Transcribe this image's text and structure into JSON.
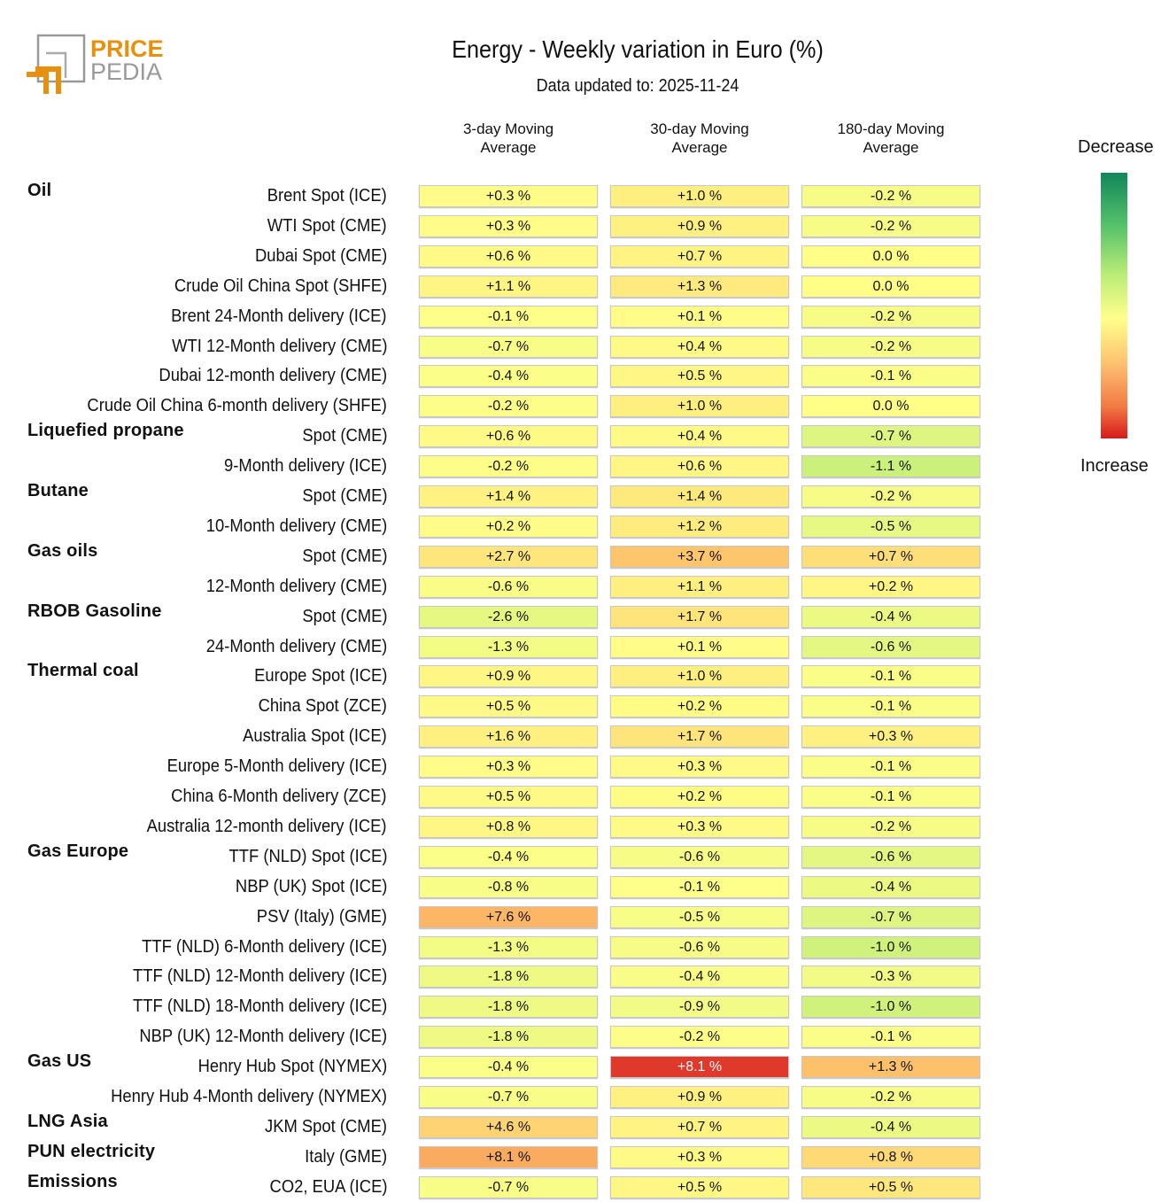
{
  "logo": {
    "text_top": "PRICE",
    "text_bottom": "PEDIA"
  },
  "title": "Energy - Weekly variation in Euro (%)",
  "subtitle": "Data updated to: 2025-11-24",
  "chart_data": {
    "type": "heatmap",
    "title": "Energy - Weekly variation in Euro (%)",
    "columns": [
      "3-day Moving\nAverage",
      "30-day Moving\nAverage",
      "180-day Moving\nAverage"
    ],
    "legend": {
      "top": "Decrease",
      "bottom": "Increase",
      "colors": {
        "decrease": "#11875b",
        "neutral": "#ffff8a",
        "increase": "#d7191c"
      }
    },
    "rows": [
      {
        "group": "Oil",
        "label": "Brent Spot (ICE)",
        "values": [
          0.3,
          1.0,
          -0.2
        ]
      },
      {
        "group": "",
        "label": "WTI Spot (CME)",
        "values": [
          0.3,
          0.9,
          -0.2
        ]
      },
      {
        "group": "",
        "label": "Dubai Spot (CME)",
        "values": [
          0.6,
          0.7,
          0.0
        ]
      },
      {
        "group": "",
        "label": "Crude Oil China Spot (SHFE)",
        "values": [
          1.1,
          1.3,
          0.0
        ]
      },
      {
        "group": "",
        "label": "Brent 24-Month delivery (ICE)",
        "values": [
          -0.1,
          0.1,
          -0.2
        ]
      },
      {
        "group": "",
        "label": "WTI 12-Month delivery (CME)",
        "values": [
          -0.7,
          0.4,
          -0.2
        ]
      },
      {
        "group": "",
        "label": "Dubai 12-month delivery (CME)",
        "values": [
          -0.4,
          0.5,
          -0.1
        ]
      },
      {
        "group": "",
        "label": "Crude Oil China 6-month delivery (SHFE)",
        "values": [
          -0.2,
          1.0,
          0.0
        ]
      },
      {
        "group": "Liquefied propane",
        "label": "Spot (CME)",
        "values": [
          0.6,
          0.4,
          -0.7
        ]
      },
      {
        "group": "",
        "label": "9-Month delivery (ICE)",
        "values": [
          -0.2,
          0.6,
          -1.1
        ]
      },
      {
        "group": "Butane",
        "label": "Spot (CME)",
        "values": [
          1.4,
          1.4,
          -0.2
        ]
      },
      {
        "group": "",
        "label": "10-Month delivery (CME)",
        "values": [
          0.2,
          1.2,
          -0.5
        ]
      },
      {
        "group": "Gas oils",
        "label": "Spot (CME)",
        "values": [
          2.7,
          3.7,
          0.7
        ]
      },
      {
        "group": "",
        "label": "12-Month delivery (CME)",
        "values": [
          -0.6,
          1.1,
          0.2
        ]
      },
      {
        "group": "RBOB Gasoline",
        "label": "Spot (CME)",
        "values": [
          -2.6,
          1.7,
          -0.4
        ]
      },
      {
        "group": "",
        "label": "24-Month delivery (CME)",
        "values": [
          -1.3,
          0.1,
          -0.6
        ]
      },
      {
        "group": "Thermal coal",
        "label": "Europe Spot (ICE)",
        "values": [
          0.9,
          1.0,
          -0.1
        ]
      },
      {
        "group": "",
        "label": "China Spot (ZCE)",
        "values": [
          0.5,
          0.2,
          -0.1
        ]
      },
      {
        "group": "",
        "label": "Australia Spot (ICE)",
        "values": [
          1.6,
          1.7,
          0.3
        ]
      },
      {
        "group": "",
        "label": "Europe 5-Month delivery (ICE)",
        "values": [
          0.3,
          0.3,
          -0.1
        ]
      },
      {
        "group": "",
        "label": "China 6-Month delivery (ZCE)",
        "values": [
          0.5,
          0.2,
          -0.1
        ]
      },
      {
        "group": "",
        "label": "Australia 12-month delivery (ICE)",
        "values": [
          0.8,
          0.3,
          -0.2
        ]
      },
      {
        "group": "Gas Europe",
        "label": "TTF (NLD) Spot (ICE)",
        "values": [
          -0.4,
          -0.6,
          -0.6
        ]
      },
      {
        "group": "",
        "label": "NBP (UK) Spot (ICE)",
        "values": [
          -0.8,
          -0.1,
          -0.4
        ]
      },
      {
        "group": "",
        "label": "PSV (Italy) (GME)",
        "values": [
          7.6,
          -0.5,
          -0.7
        ]
      },
      {
        "group": "",
        "label": "TTF (NLD) 6-Month delivery (ICE)",
        "values": [
          -1.3,
          -0.6,
          -1.0
        ]
      },
      {
        "group": "",
        "label": "TTF (NLD) 12-Month delivery (ICE)",
        "values": [
          -1.8,
          -0.4,
          -0.3
        ]
      },
      {
        "group": "",
        "label": "TTF (NLD) 18-Month delivery (ICE)",
        "values": [
          -1.8,
          -0.9,
          -1.0
        ]
      },
      {
        "group": "",
        "label": "NBP (UK) 12-Month delivery (ICE)",
        "values": [
          -1.8,
          -0.2,
          -0.1
        ]
      },
      {
        "group": "Gas US",
        "label": "Henry Hub Spot (NYMEX)",
        "values": [
          -0.4,
          8.1,
          1.3
        ]
      },
      {
        "group": "",
        "label": "Henry Hub 4-Month delivery (NYMEX)",
        "values": [
          -0.7,
          0.9,
          -0.2
        ]
      },
      {
        "group": "LNG Asia",
        "label": "JKM Spot (CME)",
        "values": [
          4.6,
          0.7,
          -0.4
        ]
      },
      {
        "group": "PUN electricity",
        "label": "Italy (GME)",
        "values": [
          8.1,
          0.3,
          0.8
        ]
      },
      {
        "group": "Emissions",
        "label": "CO2, EUA (ICE)",
        "values": [
          -0.7,
          0.5,
          0.5
        ]
      }
    ]
  }
}
